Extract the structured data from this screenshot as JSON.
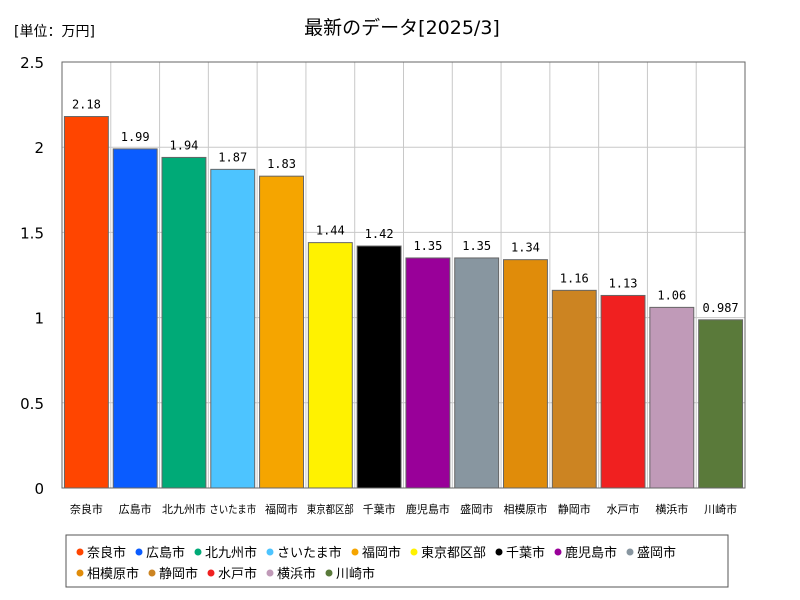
{
  "chart_data": {
    "type": "bar",
    "title": "最新のデータ[2025/3]",
    "unit_label": "[単位：万円]",
    "xlabel": "",
    "ylabel": "",
    "ylim": [
      0,
      2.5
    ],
    "yticks": [
      "0",
      "0.5",
      "1",
      "1.5",
      "2",
      "2.5"
    ],
    "grid": true,
    "legend_position": "bottom",
    "categories": [
      "奈良市",
      "広島市",
      "北九州市",
      "さいたま市",
      "福岡市",
      "東京都区部",
      "千葉市",
      "鹿児島市",
      "盛岡市",
      "相模原市",
      "静岡市",
      "水戸市",
      "横浜市",
      "川崎市"
    ],
    "values": [
      2.18,
      1.99,
      1.94,
      1.87,
      1.83,
      1.44,
      1.42,
      1.35,
      1.35,
      1.34,
      1.16,
      1.13,
      1.06,
      0.987
    ],
    "value_labels": [
      "2.18",
      "1.99",
      "1.94",
      "1.87",
      "1.83",
      "1.44",
      "1.42",
      "1.35",
      "1.35",
      "1.34",
      "1.16",
      "1.13",
      "1.06",
      "0.987"
    ],
    "colors": [
      "#ff4500",
      "#0a5cff",
      "#00aa77",
      "#4dc4ff",
      "#f5a500",
      "#fff200",
      "#000000",
      "#990099",
      "#8896a0",
      "#e08c0a",
      "#cc8422",
      "#f02020",
      "#c09ab8",
      "#5a7a3a"
    ]
  }
}
